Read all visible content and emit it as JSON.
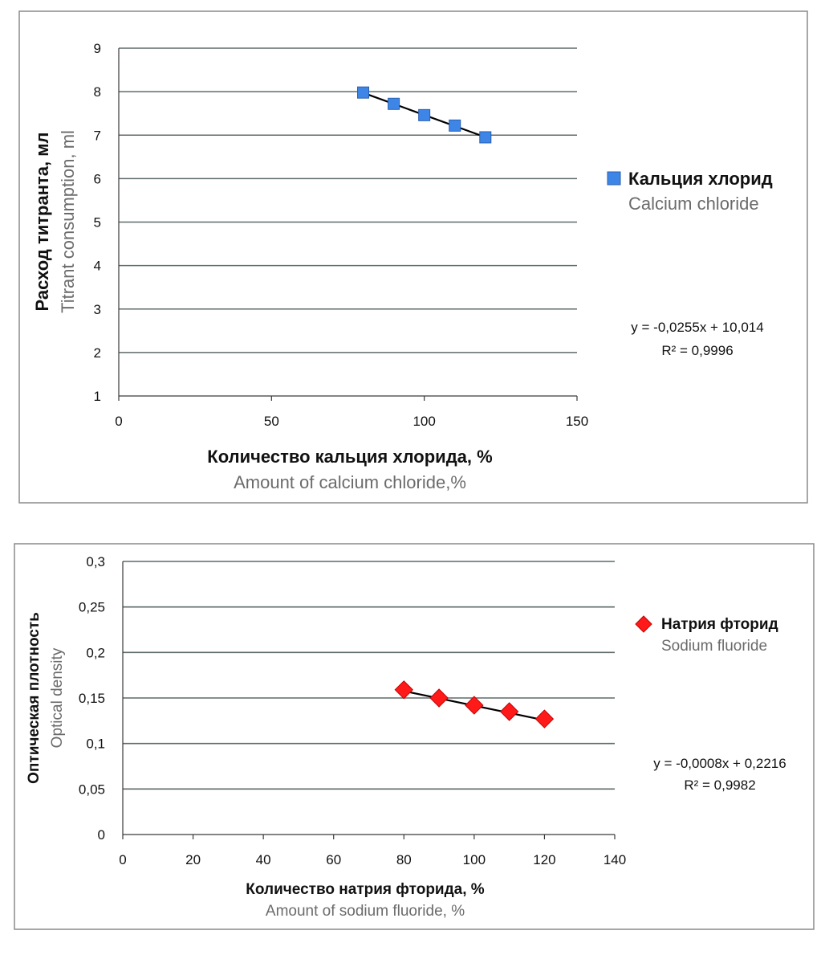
{
  "colors": {
    "calcium_marker": "#3d86e8",
    "calcium_marker_edge": "#2a5fae",
    "sodium_marker": "#ff1a1a",
    "sodium_marker_edge": "#c40000",
    "grid": "#5f6a6a",
    "trendline": "#000000"
  },
  "chart_data": [
    {
      "type": "scatter",
      "title": "",
      "xlabel": "Количество кальция хлорида, %",
      "xlabel_en": "Amount of calcium chloride,%",
      "ylabel": "Расход титранта, мл",
      "ylabel_en": "Titrant consumption, ml",
      "xlim": [
        0,
        150
      ],
      "ylim": [
        1,
        9
      ],
      "xticks": [
        0,
        50,
        100,
        150
      ],
      "yticks": [
        1,
        2,
        3,
        4,
        5,
        6,
        7,
        8,
        9
      ],
      "xtick_labels": [
        "0",
        "50",
        "100",
        "150"
      ],
      "ytick_labels": [
        "1",
        "2",
        "3",
        "4",
        "5",
        "6",
        "7",
        "8",
        "9"
      ],
      "grid": true,
      "series": [
        {
          "name": "Кальция хлорид",
          "name_en": "Calcium chloride",
          "marker": "square",
          "x": [
            80,
            90,
            100,
            110,
            120
          ],
          "y": [
            7.98,
            7.72,
            7.46,
            7.22,
            6.95
          ]
        }
      ],
      "trendline": {
        "slope": -0.0255,
        "intercept": 10.014,
        "x_range": [
          80,
          120
        ],
        "equation": "y = -0,0255x + 10,014",
        "r2": "R² = 0,9996"
      },
      "legend_position": "right"
    },
    {
      "type": "scatter",
      "title": "",
      "xlabel": "Количество натрия фторида, %",
      "xlabel_en": "Amount of sodium fluoride, %",
      "ylabel": "Оптическая плотность",
      "ylabel_en": "Optical density",
      "xlim": [
        0,
        140
      ],
      "ylim": [
        0,
        0.3
      ],
      "xticks": [
        0,
        20,
        40,
        60,
        80,
        100,
        120,
        140
      ],
      "yticks": [
        0,
        0.05,
        0.1,
        0.15,
        0.2,
        0.25,
        0.3
      ],
      "xtick_labels": [
        "0",
        "20",
        "40",
        "60",
        "80",
        "100",
        "120",
        "140"
      ],
      "ytick_labels": [
        "0",
        "0,05",
        "0,1",
        "0,15",
        "0,2",
        "0,25",
        "0,3"
      ],
      "grid": true,
      "series": [
        {
          "name": "Натрия фторид",
          "name_en": "Sodium fluoride",
          "marker": "diamond",
          "x": [
            80,
            90,
            100,
            110,
            120
          ],
          "y": [
            0.159,
            0.15,
            0.142,
            0.135,
            0.127
          ]
        }
      ],
      "trendline": {
        "slope": -0.0008,
        "intercept": 0.2216,
        "x_range": [
          80,
          120
        ],
        "equation": "y = -0,0008x + 0,2216",
        "r2": "R² = 0,9982"
      },
      "legend_position": "right"
    }
  ]
}
